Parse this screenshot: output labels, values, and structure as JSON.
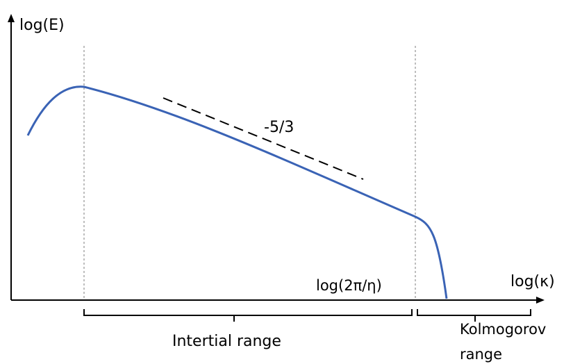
{
  "labels": {
    "y_axis": "log(E)",
    "x_axis": "log(κ)",
    "slope": "-5/3",
    "dissipation_wavenumber": "log(2π/η)",
    "inertial_range": "Intertial range",
    "kolmogorov_line1": "Kolmogorov",
    "kolmogorov_line2": "range"
  },
  "colors": {
    "curve": "#3a63b5",
    "axes": "#000000",
    "guide_lines": "#999999",
    "slope_line": "#000000"
  }
}
